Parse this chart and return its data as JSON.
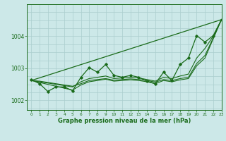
{
  "title": "Graphe pression niveau de la mer (hPa)",
  "bg_color": "#cce8e8",
  "line_color": "#1a6b1a",
  "grid_color": "#aacece",
  "xlim": [
    -0.5,
    23
  ],
  "ylim": [
    1001.7,
    1005.0
  ],
  "yticks": [
    1002,
    1003,
    1004
  ],
  "xticks": [
    0,
    1,
    2,
    3,
    4,
    5,
    6,
    7,
    8,
    9,
    10,
    11,
    12,
    13,
    14,
    15,
    16,
    17,
    18,
    19,
    20,
    21,
    22,
    23
  ],
  "series_zigzag": [
    1002.65,
    1002.52,
    1002.28,
    1002.42,
    1002.42,
    1002.3,
    1002.72,
    1003.02,
    1002.88,
    1003.12,
    1002.78,
    1002.72,
    1002.78,
    1002.72,
    1002.6,
    1002.52,
    1002.88,
    1002.62,
    1003.12,
    1003.32,
    1004.02,
    1003.82,
    1004.02,
    1004.52
  ],
  "series_trend1": [
    1002.62,
    1002.58,
    1002.54,
    1002.5,
    1002.46,
    1002.42,
    1002.58,
    1002.68,
    1002.72,
    1002.76,
    1002.68,
    1002.7,
    1002.72,
    1002.7,
    1002.65,
    1002.6,
    1002.72,
    1002.68,
    1002.76,
    1002.82,
    1003.32,
    1003.62,
    1004.0,
    1004.52
  ],
  "series_trend2": [
    1002.62,
    1002.56,
    1002.5,
    1002.44,
    1002.38,
    1002.32,
    1002.48,
    1002.58,
    1002.62,
    1002.66,
    1002.6,
    1002.62,
    1002.64,
    1002.62,
    1002.58,
    1002.52,
    1002.62,
    1002.58,
    1002.64,
    1002.68,
    1003.08,
    1003.32,
    1003.92,
    1004.52
  ],
  "series_smooth": [
    1002.62,
    1002.6,
    1002.56,
    1002.52,
    1002.48,
    1002.44,
    1002.52,
    1002.62,
    1002.65,
    1002.68,
    1002.63,
    1002.65,
    1002.67,
    1002.65,
    1002.62,
    1002.57,
    1002.65,
    1002.62,
    1002.68,
    1002.72,
    1003.15,
    1003.4,
    1003.95,
    1004.52
  ]
}
